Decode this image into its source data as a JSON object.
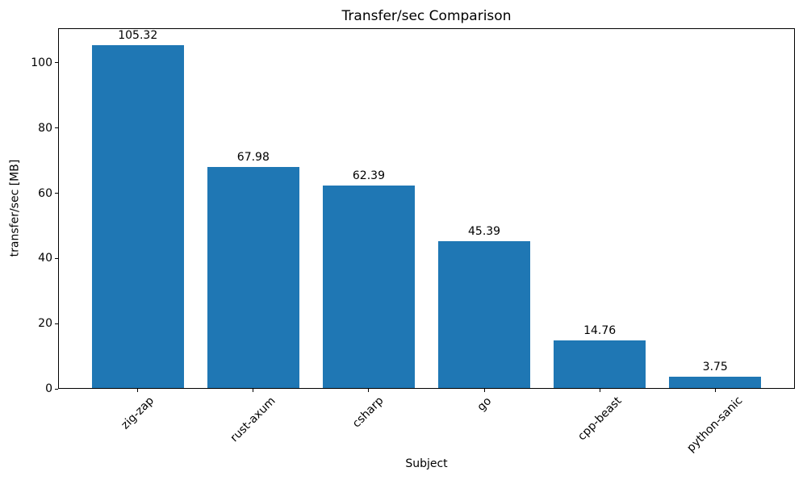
{
  "chart_data": {
    "type": "bar",
    "title": "Transfer/sec Comparison",
    "xlabel": "Subject",
    "ylabel": "transfer/sec [MB]",
    "categories": [
      "zig-zap",
      "rust-axum",
      "csharp",
      "go",
      "cpp-beast",
      "python-sanic"
    ],
    "values": [
      105.32,
      67.98,
      62.39,
      45.39,
      14.76,
      3.75
    ],
    "bar_value_labels": [
      "105.32",
      "67.98",
      "62.39",
      "45.39",
      "14.76",
      "3.75"
    ],
    "yticks": [
      0,
      20,
      40,
      60,
      80,
      100
    ],
    "ylim": [
      0,
      110.6
    ],
    "x_tick_rotation_deg": 45,
    "grid": false,
    "legend": "none",
    "bar_color": "#1f77b4",
    "text_color": "#000000",
    "spine_color": "#000000",
    "background_color": "#ffffff"
  }
}
